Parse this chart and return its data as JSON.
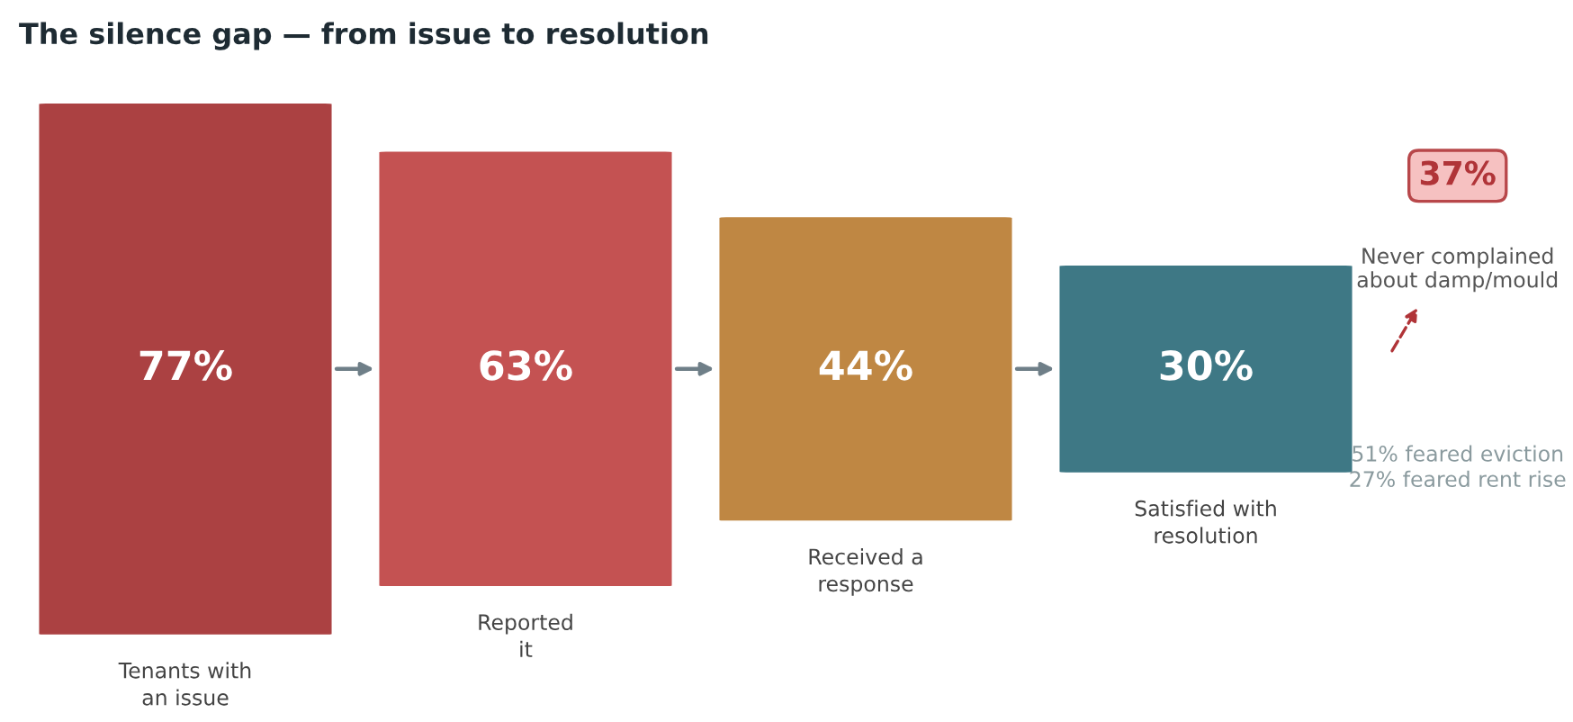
{
  "chart_data": {
    "type": "other",
    "title": "The silence gap — from issue to resolution",
    "categories": [
      "Tenants with\nan issue",
      "Reported\nit",
      "Received a\nresponse",
      "Satisfied with\nresolution"
    ],
    "values": [
      77,
      63,
      44,
      30
    ],
    "value_labels": [
      "77%",
      "63%",
      "44%",
      "30%"
    ],
    "colors": [
      "#ab4142",
      "#c45252",
      "#bf8743",
      "#3e7885"
    ],
    "annotations": [
      "37%",
      "Never complained\nabout damp/mould",
      "51% feared eviction\n27% feared rent rise"
    ]
  }
}
